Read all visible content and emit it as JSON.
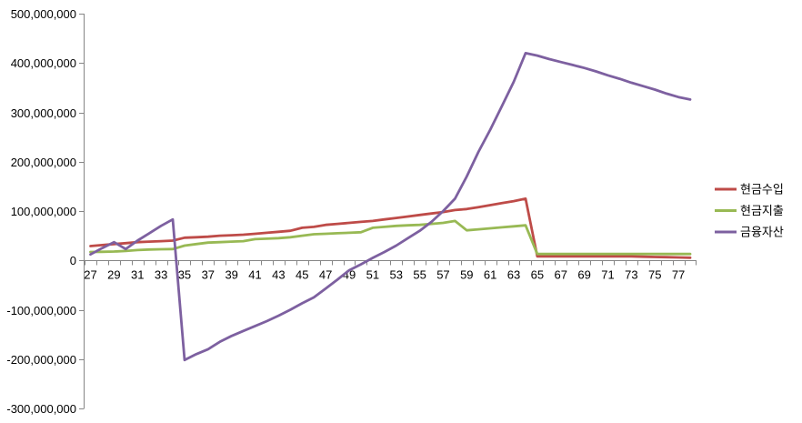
{
  "chart_data": {
    "type": "line",
    "title": "",
    "xlabel": "",
    "ylabel": "",
    "ylim": [
      -300000000,
      500000000
    ],
    "y_ticks": [
      500000000,
      400000000,
      300000000,
      200000000,
      100000000,
      0,
      -100000000,
      -200000000,
      -300000000
    ],
    "y_tick_labels": [
      "500,000,000",
      "400,000,000",
      "300,000,000",
      "200,000,000",
      "100,000,000",
      "0",
      "-100,000,000",
      "-200,000,000",
      "-300,000,000"
    ],
    "x": [
      27,
      28,
      29,
      30,
      31,
      32,
      33,
      34,
      35,
      36,
      37,
      38,
      39,
      40,
      41,
      42,
      43,
      44,
      45,
      46,
      47,
      48,
      49,
      50,
      51,
      52,
      53,
      54,
      55,
      56,
      57,
      58,
      59,
      60,
      61,
      62,
      63,
      64,
      65,
      66,
      67,
      68,
      69,
      70,
      71,
      72,
      73,
      74,
      75,
      76,
      77,
      78
    ],
    "x_tick_labels": [
      "27",
      "29",
      "31",
      "33",
      "35",
      "37",
      "39",
      "41",
      "43",
      "45",
      "47",
      "49",
      "51",
      "53",
      "55",
      "57",
      "59",
      "61",
      "63",
      "65",
      "67",
      "69",
      "71",
      "73",
      "75",
      "77"
    ],
    "grid": false,
    "legend_position": "right",
    "series": [
      {
        "name": "현금수입",
        "color": "#be4b48",
        "values": [
          29000000,
          31000000,
          33000000,
          35000000,
          37000000,
          38000000,
          39000000,
          40000000,
          46000000,
          47000000,
          48000000,
          50000000,
          51000000,
          52000000,
          54000000,
          56000000,
          58000000,
          60000000,
          66000000,
          68000000,
          72000000,
          74000000,
          76000000,
          78000000,
          80000000,
          83000000,
          86000000,
          89000000,
          92000000,
          95000000,
          98000000,
          102000000,
          104000000,
          108000000,
          112000000,
          116000000,
          120000000,
          125000000,
          8000000,
          8000000,
          8000000,
          8000000,
          8000000,
          8000000,
          8000000,
          8000000,
          8000000,
          7500000,
          7000000,
          6500000,
          6000000,
          5500000
        ]
      },
      {
        "name": "현금지출",
        "color": "#98b954",
        "values": [
          17000000,
          17500000,
          18000000,
          19000000,
          21000000,
          22000000,
          22500000,
          23000000,
          30000000,
          33000000,
          36000000,
          37000000,
          38000000,
          39000000,
          43000000,
          44000000,
          45000000,
          47000000,
          50000000,
          53000000,
          54000000,
          55000000,
          56000000,
          57000000,
          66000000,
          68000000,
          70000000,
          71000000,
          72000000,
          74000000,
          76000000,
          80000000,
          61000000,
          63000000,
          65000000,
          67000000,
          69000000,
          71000000,
          13000000,
          13000000,
          13000000,
          13000000,
          13000000,
          13000000,
          13000000,
          13000000,
          13000000,
          13000000,
          13000000,
          13000000,
          13000000,
          13000000
        ]
      },
      {
        "name": "금융자산",
        "color": "#7d60a0",
        "values": [
          12000000,
          25000000,
          37000000,
          23000000,
          40000000,
          55000000,
          70000000,
          83000000,
          -202000000,
          -190000000,
          -180000000,
          -165000000,
          -153000000,
          -143000000,
          -133000000,
          -123000000,
          -112000000,
          -100000000,
          -87000000,
          -75000000,
          -57000000,
          -39000000,
          -20000000,
          -8000000,
          5000000,
          17000000,
          30000000,
          45000000,
          60000000,
          78000000,
          100000000,
          125000000,
          170000000,
          220000000,
          265000000,
          313000000,
          362000000,
          420000000,
          415000000,
          408000000,
          402000000,
          396000000,
          390000000,
          383000000,
          375000000,
          368000000,
          360000000,
          353000000,
          346000000,
          338000000,
          331000000,
          326000000
        ]
      }
    ]
  }
}
